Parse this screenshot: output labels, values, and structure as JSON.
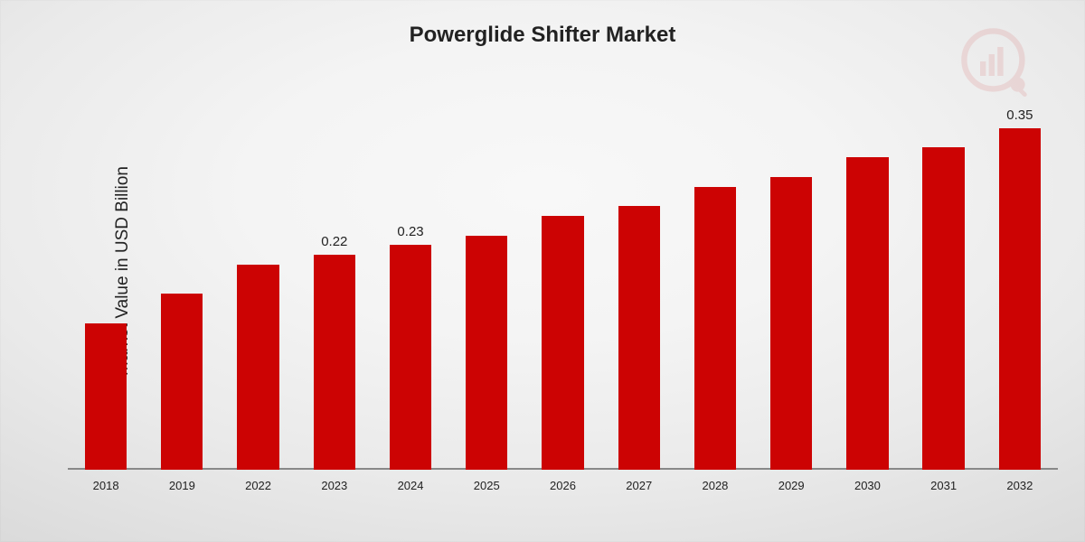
{
  "chart": {
    "type": "bar",
    "title": "Powerglide Shifter Market",
    "title_fontsize": 24,
    "ylabel": "Market Value in USD Billion",
    "ylabel_fontsize": 19,
    "categories": [
      "2018",
      "2019",
      "2022",
      "2023",
      "2024",
      "2025",
      "2026",
      "2027",
      "2028",
      "2029",
      "2030",
      "2031",
      "2032"
    ],
    "values": [
      0.15,
      0.18,
      0.21,
      0.22,
      0.23,
      0.24,
      0.26,
      0.27,
      0.29,
      0.3,
      0.32,
      0.33,
      0.35
    ],
    "value_labels": {
      "2023": "0.22",
      "2024": "0.23",
      "2032": "0.35"
    },
    "bar_color": "#cc0303",
    "text_color": "#222222",
    "baseline_color": "#888888",
    "bar_width_ratio": 0.55,
    "ylim": [
      0,
      0.37
    ],
    "xlabel_fontsize": 13,
    "value_label_fontsize": 15,
    "background": "radial-gradient",
    "logo_color": "#d23a3a",
    "logo_opacity": 0.12
  }
}
